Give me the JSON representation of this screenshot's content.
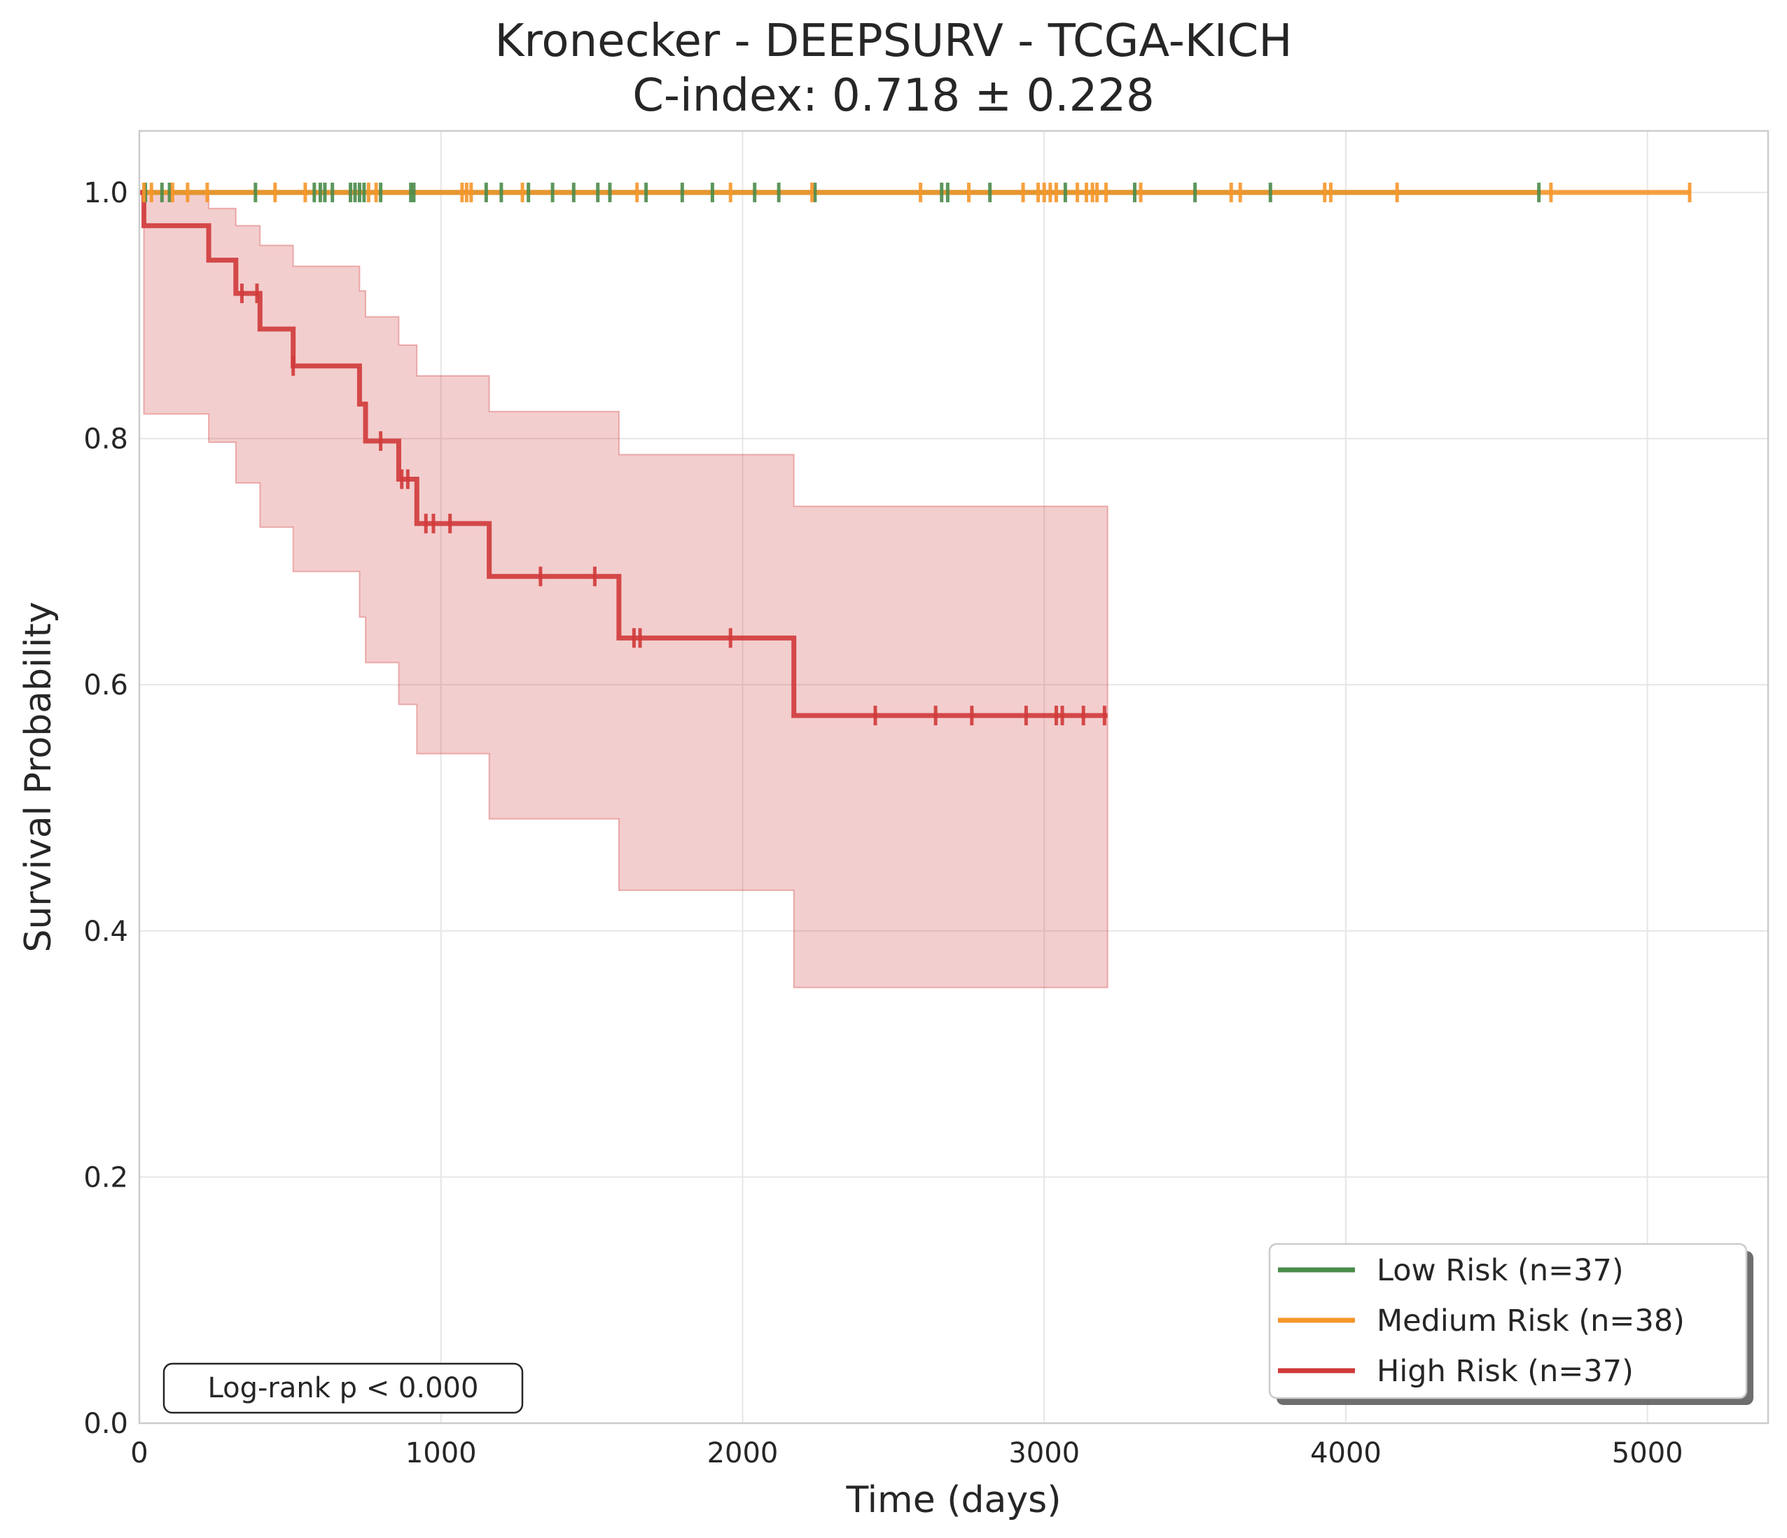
{
  "chart_data": {
    "type": "line",
    "subtype": "kaplan-meier",
    "title": "Kronecker - DEEPSURV - TCGA-KICH",
    "subtitle": "C-index: 0.718 ± 0.228",
    "xlabel": "Time (days)",
    "ylabel": "Survival Probability",
    "xlim": [
      0,
      5400
    ],
    "ylim": [
      0,
      1.05
    ],
    "xticks": [
      0,
      1000,
      2000,
      3000,
      4000,
      5000
    ],
    "xtick_labels": [
      "0",
      "1000",
      "2000",
      "3000",
      "4000",
      "5000"
    ],
    "yticks": [
      0.0,
      0.2,
      0.4,
      0.6,
      0.8,
      1.0
    ],
    "ytick_labels": [
      "0.0",
      "0.2",
      "0.4",
      "0.6",
      "0.8",
      "1.0"
    ],
    "grid": true,
    "legend_position": "bottom-right",
    "annotation": "Log-rank p < 0.000",
    "series": [
      {
        "name": "Low Risk (n=37)",
        "color": "#4a8b4a",
        "steps": [
          [
            0,
            1.0
          ],
          [
            4640,
            1.0
          ]
        ],
        "censor_times": [
          20,
          75,
          100,
          385,
          580,
          600,
          615,
          640,
          700,
          715,
          730,
          745,
          800,
          900,
          910,
          1150,
          1200,
          1290,
          1370,
          1440,
          1520,
          1560,
          1680,
          1800,
          1900,
          2040,
          2120,
          2240,
          2660,
          2680,
          2820,
          3070,
          3300,
          3500,
          3750,
          4640
        ]
      },
      {
        "name": "Medium Risk (n=38)",
        "color": "#f5962a",
        "steps": [
          [
            0,
            1.0
          ],
          [
            5140,
            1.0
          ]
        ],
        "censor_times": [
          15,
          40,
          110,
          160,
          225,
          450,
          550,
          760,
          785,
          1070,
          1085,
          1100,
          1270,
          1650,
          1960,
          2230,
          2590,
          2750,
          2930,
          2980,
          3000,
          3020,
          3040,
          3110,
          3140,
          3160,
          3175,
          3205,
          3320,
          3620,
          3650,
          3930,
          3950,
          4170,
          4680,
          5140
        ]
      },
      {
        "name": "High Risk (n=37)",
        "color": "#d03a3a",
        "steps": [
          [
            0,
            1.0
          ],
          [
            15,
            0.973
          ],
          [
            230,
            0.945
          ],
          [
            320,
            0.918
          ],
          [
            400,
            0.889
          ],
          [
            510,
            0.859
          ],
          [
            730,
            0.828
          ],
          [
            750,
            0.798
          ],
          [
            860,
            0.767
          ],
          [
            920,
            0.731
          ],
          [
            1160,
            0.688
          ],
          [
            1590,
            0.638
          ],
          [
            2170,
            0.575
          ],
          [
            3210,
            0.575
          ]
        ],
        "ci_upper": [
          [
            0,
            1.0
          ],
          [
            15,
            1.0
          ],
          [
            230,
            0.987
          ],
          [
            320,
            0.973
          ],
          [
            400,
            0.957
          ],
          [
            510,
            0.94
          ],
          [
            730,
            0.92
          ],
          [
            750,
            0.899
          ],
          [
            860,
            0.876
          ],
          [
            920,
            0.851
          ],
          [
            1160,
            0.822
          ],
          [
            1590,
            0.787
          ],
          [
            2170,
            0.745
          ],
          [
            3210,
            0.745
          ]
        ],
        "ci_lower": [
          [
            0,
            1.0
          ],
          [
            15,
            0.82
          ],
          [
            230,
            0.797
          ],
          [
            320,
            0.764
          ],
          [
            400,
            0.728
          ],
          [
            510,
            0.692
          ],
          [
            730,
            0.655
          ],
          [
            750,
            0.618
          ],
          [
            860,
            0.584
          ],
          [
            920,
            0.544
          ],
          [
            1160,
            0.491
          ],
          [
            1590,
            0.433
          ],
          [
            2170,
            0.354
          ],
          [
            3210,
            0.354
          ]
        ],
        "censor_times": [
          340,
          390,
          510,
          800,
          870,
          890,
          950,
          975,
          1030,
          1330,
          1510,
          1640,
          1660,
          1960,
          2440,
          2640,
          2760,
          2940,
          3040,
          3060,
          3130,
          3200
        ]
      }
    ]
  }
}
